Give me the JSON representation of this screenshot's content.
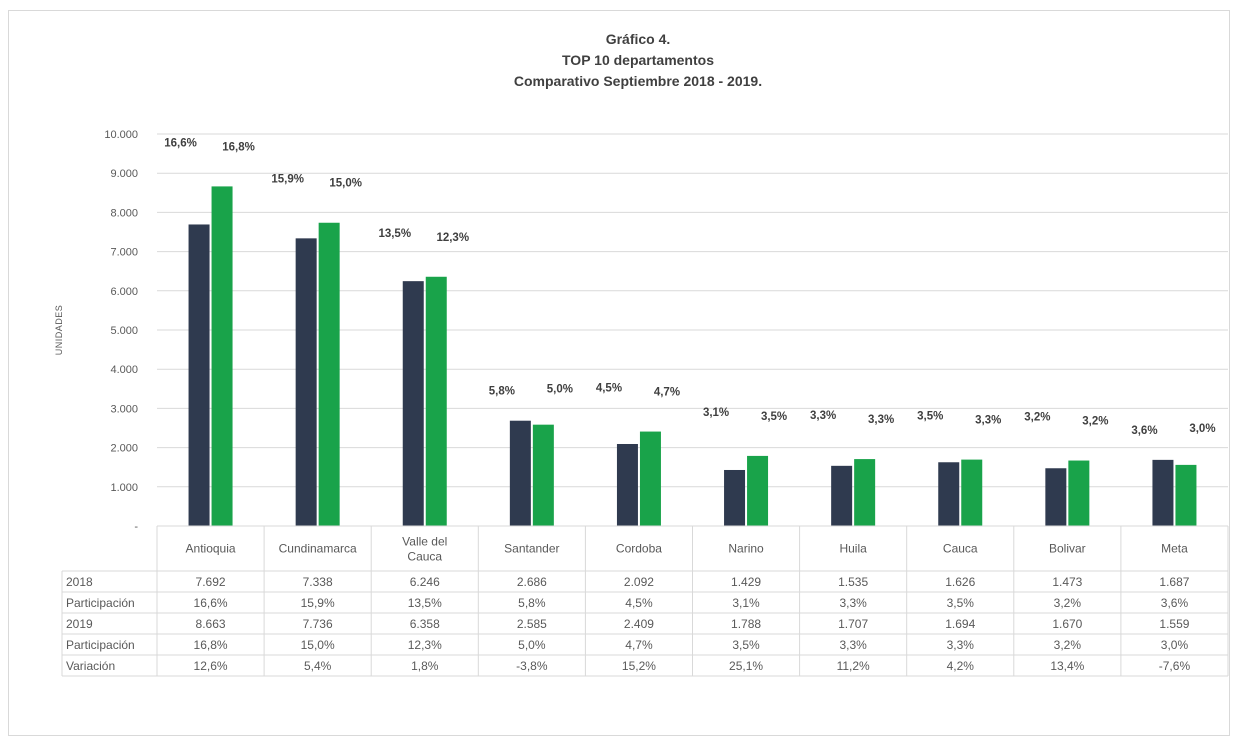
{
  "colors": {
    "series_2018": "#2f3a4f",
    "series_2019": "#19a34a",
    "grid": "#d9d9d9",
    "text": "#595959"
  },
  "chart_data": {
    "type": "bar",
    "title": [
      "Gráfico 4.",
      "TOP 10 departamentos",
      "Comparativo Septiembre 2018 - 2019."
    ],
    "ylabel": "UNIDADES",
    "ylim": [
      0,
      10000
    ],
    "yticks": [
      "-",
      "1.000",
      "2.000",
      "3.000",
      "4.000",
      "5.000",
      "6.000",
      "7.000",
      "8.000",
      "9.000",
      "10.000"
    ],
    "grid": true,
    "categories": [
      [
        "Antioquia"
      ],
      [
        "Cundinamarca"
      ],
      [
        "Valle del",
        "Cauca"
      ],
      [
        "Santander"
      ],
      [
        "Cordoba"
      ],
      [
        "Narino"
      ],
      [
        "Huila"
      ],
      [
        "Cauca"
      ],
      [
        "Bolivar"
      ],
      [
        "Meta"
      ]
    ],
    "series": [
      {
        "name": "2018",
        "values": [
          7692,
          7338,
          6246,
          2686,
          2092,
          1429,
          1535,
          1626,
          1473,
          1687
        ],
        "data_labels": [
          "16,6%",
          "15,9%",
          "13,5%",
          "5,8%",
          "4,5%",
          "3,1%",
          "3,3%",
          "3,5%",
          "3,2%",
          "3,6%"
        ]
      },
      {
        "name": "2019",
        "values": [
          8663,
          7736,
          6358,
          2585,
          2409,
          1788,
          1707,
          1694,
          1670,
          1559
        ],
        "data_labels": [
          "16,8%",
          "15,0%",
          "12,3%",
          "5,0%",
          "4,7%",
          "3,5%",
          "3,3%",
          "3,3%",
          "3,2%",
          "3,0%"
        ]
      }
    ],
    "table": [
      {
        "label": "2018",
        "cells": [
          "7.692",
          "7.338",
          "6.246",
          "2.686",
          "2.092",
          "1.429",
          "1.535",
          "1.626",
          "1.473",
          "1.687"
        ]
      },
      {
        "label": "Participación",
        "cells": [
          "16,6%",
          "15,9%",
          "13,5%",
          "5,8%",
          "4,5%",
          "3,1%",
          "3,3%",
          "3,5%",
          "3,2%",
          "3,6%"
        ]
      },
      {
        "label": "2019",
        "cells": [
          "8.663",
          "7.736",
          "6.358",
          "2.585",
          "2.409",
          "1.788",
          "1.707",
          "1.694",
          "1.670",
          "1.559"
        ]
      },
      {
        "label": "Participación",
        "cells": [
          "16,8%",
          "15,0%",
          "12,3%",
          "5,0%",
          "4,7%",
          "3,5%",
          "3,3%",
          "3,3%",
          "3,2%",
          "3,0%"
        ]
      },
      {
        "label": "Variación",
        "cells": [
          "12,6%",
          "5,4%",
          "1,8%",
          "-3,8%",
          "15,2%",
          "25,1%",
          "11,2%",
          "4,2%",
          "13,4%",
          "-7,6%"
        ]
      }
    ]
  }
}
